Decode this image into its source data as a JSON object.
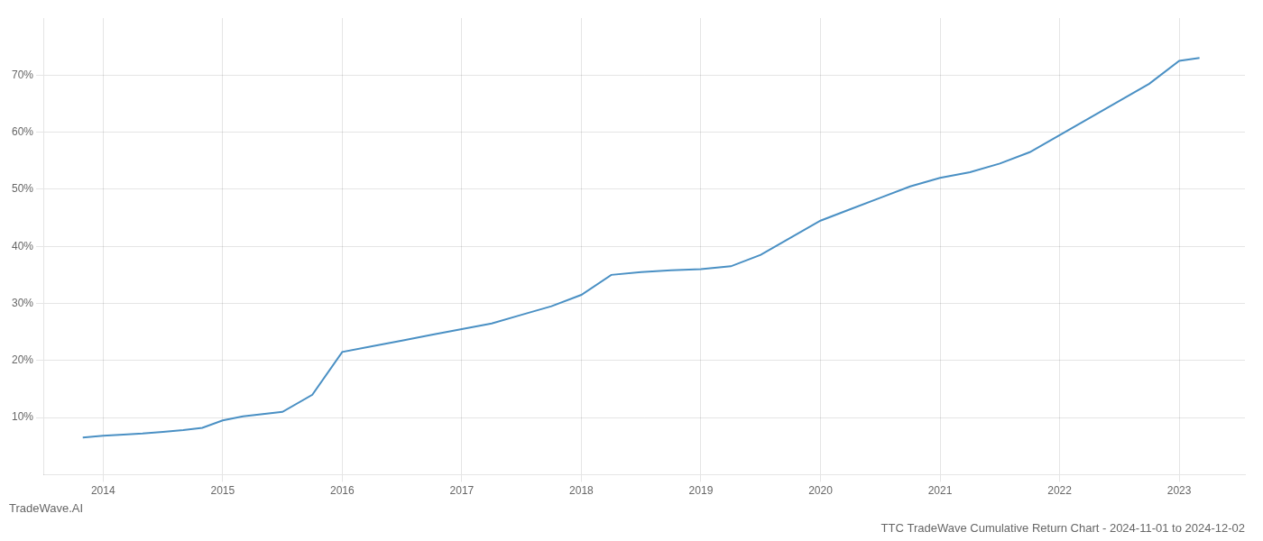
{
  "chart_data": {
    "type": "line",
    "title": "TTC TradeWave Cumulative Return Chart - 2024-11-01 to 2024-12-02",
    "subtitle": "TradeWave.AI",
    "x": [
      2013.83,
      2014.0,
      2014.17,
      2014.33,
      2014.5,
      2014.67,
      2014.83,
      2015.0,
      2015.17,
      2015.5,
      2015.75,
      2016.0,
      2016.25,
      2016.5,
      2016.75,
      2017.0,
      2017.25,
      2017.5,
      2017.75,
      2018.0,
      2018.25,
      2018.5,
      2018.75,
      2019.0,
      2019.25,
      2019.5,
      2019.75,
      2020.0,
      2020.25,
      2020.5,
      2020.75,
      2021.0,
      2021.25,
      2021.5,
      2021.75,
      2022.0,
      2022.25,
      2022.5,
      2022.75,
      2023.0,
      2023.17
    ],
    "values": [
      6.5,
      6.8,
      7.0,
      7.2,
      7.5,
      7.8,
      8.2,
      9.5,
      10.2,
      11.0,
      14.0,
      21.5,
      22.5,
      23.5,
      24.5,
      25.5,
      26.5,
      28.0,
      29.5,
      31.5,
      35.0,
      35.5,
      35.8,
      36.0,
      36.5,
      38.5,
      41.5,
      44.5,
      46.5,
      48.5,
      50.5,
      52.0,
      53.0,
      54.5,
      56.5,
      59.5,
      62.5,
      65.5,
      68.5,
      72.5,
      73.0
    ],
    "color": "#4a90c4",
    "xlim": [
      2013.5,
      2023.55
    ],
    "xticks": [
      2014,
      2015,
      2016,
      2017,
      2018,
      2019,
      2020,
      2021,
      2022,
      2023
    ],
    "ylim": [
      0,
      80
    ],
    "yticks": [
      {
        "value": 10,
        "label": "10%"
      },
      {
        "value": 20,
        "label": "20%"
      },
      {
        "value": 30,
        "label": "30%"
      },
      {
        "value": 40,
        "label": "40%"
      },
      {
        "value": 50,
        "label": "50%"
      },
      {
        "value": 60,
        "label": "60%"
      },
      {
        "value": 70,
        "label": "70%"
      }
    ],
    "grid": true
  }
}
